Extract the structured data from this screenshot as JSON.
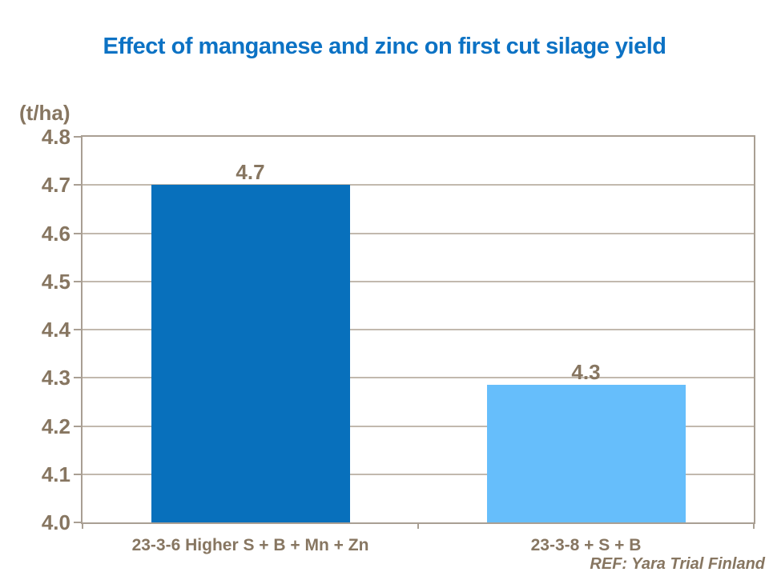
{
  "title": "Effect of manganese and zinc on first cut silage yield",
  "axis_unit_label": "(t/ha)",
  "footer": {
    "ref_label": "REF: Yara Trial Finland"
  },
  "colors": {
    "background": "#FFFFFF",
    "title_blue": "#0C72C4",
    "text_brown": "#877661",
    "axis_line": "#A99F93",
    "gridline": "#C2B9AE",
    "bar_dark_blue": "#0870BC",
    "bar_light_blue": "#66BEFB"
  },
  "chart_data": {
    "type": "bar",
    "title": "Effect of manganese and zinc on first cut silage yield",
    "ylabel": "(t/ha)",
    "xlabel": "",
    "ylim": [
      4.0,
      4.8
    ],
    "ytick_step": 0.1,
    "yticks": [
      "4.8",
      "4.7",
      "4.6",
      "4.5",
      "4.4",
      "4.3",
      "4.2",
      "4.1",
      "4.0"
    ],
    "grid": true,
    "legend": false,
    "categories": [
      "23-3-6 Higher S + B + Mn + Zn",
      "23-3-8 + S + B"
    ],
    "values": [
      4.7,
      4.3
    ],
    "bars": [
      {
        "category": "23-3-6 Higher S + B + Mn + Zn",
        "label": "4.7",
        "value": 4.7,
        "drawn_value": 4.7,
        "color": "#0870BC"
      },
      {
        "category": "23-3-8 + S + B",
        "label": "4.3",
        "value": 4.3,
        "drawn_value": 4.285,
        "color": "#66BEFB"
      }
    ],
    "annotation": "REF: Yara Trial Finland"
  }
}
